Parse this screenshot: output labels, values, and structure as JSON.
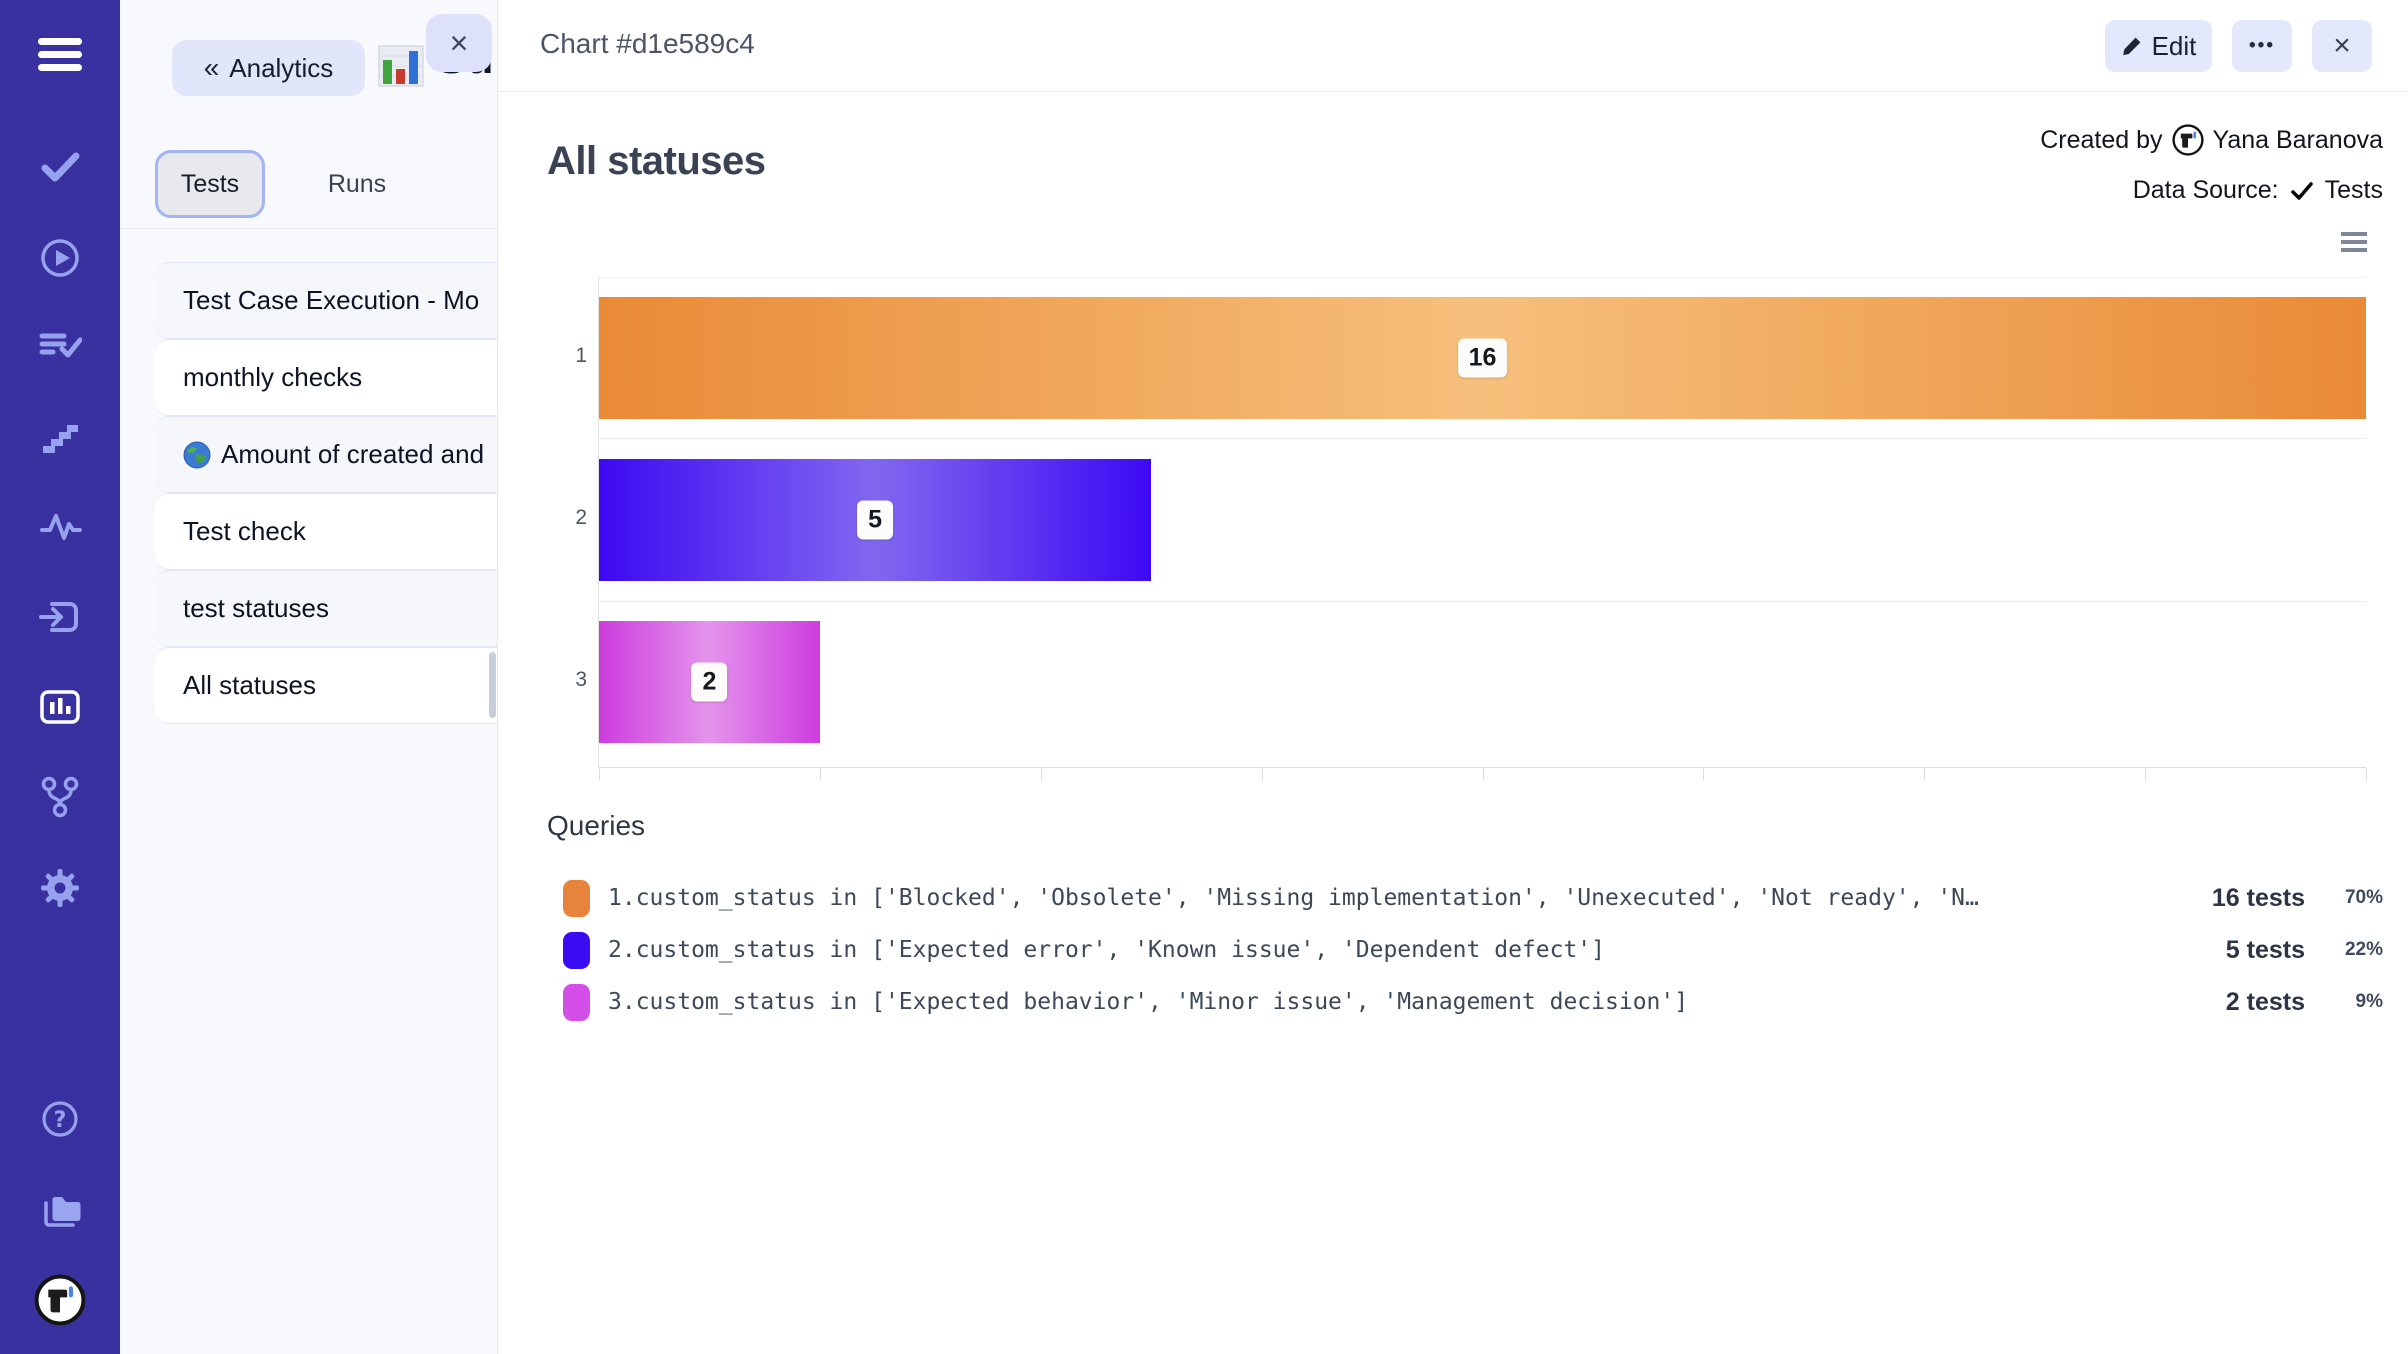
{
  "colors": {
    "sidebar_bg": "#3a31a0",
    "sidebar_icon": "#97a2ef",
    "accent_lavender": "#e2e6fb",
    "tab_ring": "#a2b4f6",
    "stripe_row": "#f5f7fb"
  },
  "drawer": {
    "back_button_label": "Analytics",
    "back_chevrons": "«",
    "close_label": "×",
    "partial_page_title": "Su",
    "tabs": [
      {
        "label": "Tests",
        "active": true
      },
      {
        "label": "Runs",
        "active": false
      }
    ],
    "items": [
      {
        "label": "Test Case Execution - Mo",
        "icon": null
      },
      {
        "label": "monthly checks",
        "icon": null
      },
      {
        "label": "Amount of created and",
        "icon": "globe"
      },
      {
        "label": "Test check",
        "icon": null
      },
      {
        "label": "test statuses",
        "icon": null
      },
      {
        "label": "All statuses",
        "icon": null
      }
    ]
  },
  "header": {
    "title": "Chart #d1e589c4",
    "edit_label": "Edit",
    "more_label": "•••",
    "close_label": "×"
  },
  "meta": {
    "created_by_label": "Created by",
    "author": "Yana Baranova",
    "data_source_label": "Data Source:",
    "data_source_value": "Tests"
  },
  "chart_data": {
    "type": "bar",
    "orientation": "horizontal",
    "title": "All statuses",
    "categories": [
      "1",
      "2",
      "3"
    ],
    "values": [
      16,
      5,
      2
    ],
    "value_labels": [
      "16",
      "5",
      "2"
    ],
    "xlim": [
      0,
      16
    ],
    "x_tick_step": 2,
    "grid": true,
    "xlabel": "",
    "ylabel": "",
    "bar_styles": [
      {
        "edge": "#e98a36",
        "mid": "#f6c07c"
      },
      {
        "edge": "#3d09f3",
        "mid": "#8168ef"
      },
      {
        "edge": "#cd3cde",
        "mid": "#e494ec"
      }
    ]
  },
  "queries": {
    "heading": "Queries",
    "rows": [
      {
        "swatch": "#e8833b",
        "query": "1.custom_status in ['Blocked', 'Obsolete', 'Missing implementation', 'Unexecuted', 'Not ready', 'N…",
        "tests": "16 tests",
        "percent": "70%"
      },
      {
        "swatch": "#3a0cf2",
        "query": "2.custom_status in ['Expected error', 'Known issue', 'Dependent defect']",
        "tests": "5 tests",
        "percent": "22%"
      },
      {
        "swatch": "#d44fe8",
        "query": "3.custom_status in ['Expected behavior', 'Minor issue', 'Management decision']",
        "tests": "2 tests",
        "percent": "9%"
      }
    ]
  }
}
